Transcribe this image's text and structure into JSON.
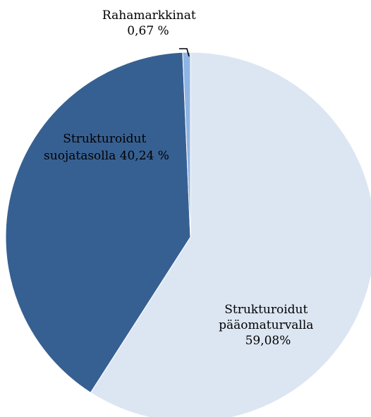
{
  "chart_data": {
    "type": "pie",
    "title": "",
    "start_angle_deg": 0,
    "direction": "clockwise",
    "slices": [
      {
        "value": 59.08,
        "color": "#dce6f2",
        "label_lines": [
          "Strukturoidut",
          "pääomaturvalla",
          "59,08%"
        ]
      },
      {
        "value": 40.24,
        "color": "#376092",
        "label_lines": [
          "Strukturoidut",
          "suojatasolla 40,24 %"
        ]
      },
      {
        "value": 0.67,
        "color": "#8eb4e3",
        "label_lines": [
          "Rahamarkkinat",
          "0,67 %"
        ]
      }
    ],
    "legend": "none",
    "leader_line_slice": 2
  }
}
